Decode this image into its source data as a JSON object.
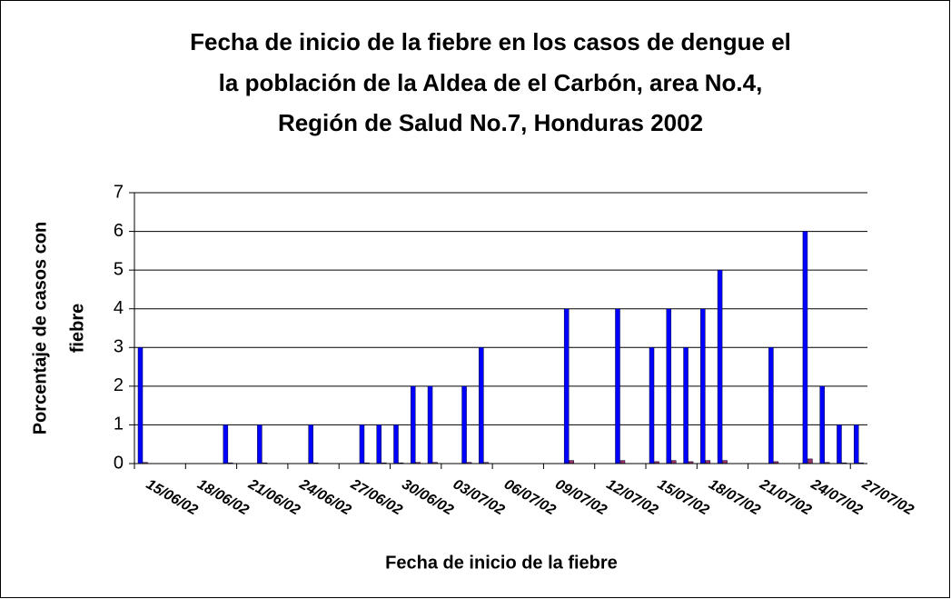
{
  "chart_data": {
    "type": "bar",
    "title": [
      "Fecha de inicio de la fiebre en los casos de dengue el",
      "la población de la Aldea de el Carbón, area No.4,",
      "Región de Salud No.7, Honduras 2002"
    ],
    "x_label": "Fecha de inicio de la fiebre",
    "y_label": [
      "Porcentaje de casos con",
      "fiebre"
    ],
    "categories": [
      "15/06/02",
      null,
      null,
      "18/06/02",
      null,
      null,
      "21/06/02",
      null,
      null,
      "24/06/02",
      null,
      null,
      "27/06/02",
      null,
      null,
      "30/06/02",
      null,
      null,
      "03/07/02",
      null,
      null,
      "06/07/02",
      null,
      null,
      "09/07/02",
      null,
      null,
      "12/07/02",
      null,
      null,
      "15/07/02",
      null,
      null,
      "18/07/02",
      null,
      null,
      "21/07/02",
      null,
      null,
      "24/07/02",
      null,
      null,
      "27/07/02"
    ],
    "series": [
      {
        "color": "#0000ff",
        "values": [
          3,
          0,
          0,
          0,
          0,
          1,
          0,
          1,
          0,
          0,
          1,
          0,
          0,
          1,
          1,
          1,
          2,
          2,
          0,
          2,
          3,
          0,
          0,
          0,
          0,
          4,
          0,
          0,
          4,
          0,
          3,
          4,
          3,
          4,
          5,
          0,
          0,
          3,
          0,
          6,
          2,
          1,
          1
        ]
      },
      {
        "color": "#993366",
        "values": [
          0.03,
          0,
          0,
          0,
          0,
          0.02,
          0,
          0.02,
          0,
          0,
          0.02,
          0,
          0,
          0.02,
          0.02,
          0.02,
          0.03,
          0.03,
          0,
          0.03,
          0.03,
          0,
          0,
          0,
          0,
          0.08,
          0,
          0,
          0.08,
          0,
          0.05,
          0.08,
          0.05,
          0.08,
          0.08,
          0,
          0,
          0.05,
          0,
          0.12,
          0.03,
          0.02,
          0.02
        ]
      }
    ],
    "ylim": [
      0,
      7
    ],
    "yticks": [
      0,
      1,
      2,
      3,
      4,
      5,
      6,
      7
    ],
    "grid": true
  }
}
